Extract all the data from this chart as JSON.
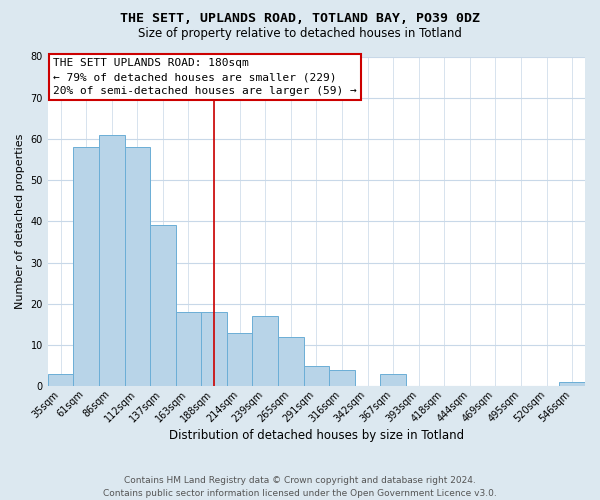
{
  "title1": "THE SETT, UPLANDS ROAD, TOTLAND BAY, PO39 0DZ",
  "title2": "Size of property relative to detached houses in Totland",
  "xlabel": "Distribution of detached houses by size in Totland",
  "ylabel": "Number of detached properties",
  "bar_labels": [
    "35sqm",
    "61sqm",
    "86sqm",
    "112sqm",
    "137sqm",
    "163sqm",
    "188sqm",
    "214sqm",
    "239sqm",
    "265sqm",
    "291sqm",
    "316sqm",
    "342sqm",
    "367sqm",
    "393sqm",
    "418sqm",
    "444sqm",
    "469sqm",
    "495sqm",
    "520sqm",
    "546sqm"
  ],
  "bar_values": [
    3,
    58,
    61,
    58,
    39,
    18,
    18,
    13,
    17,
    12,
    5,
    4,
    0,
    3,
    0,
    0,
    0,
    0,
    0,
    0,
    1
  ],
  "bar_color": "#b8d4e8",
  "bar_edge_color": "#6baed6",
  "vline_index": 6,
  "vline_color": "#cc0000",
  "ylim": [
    0,
    80
  ],
  "yticks": [
    0,
    10,
    20,
    30,
    40,
    50,
    60,
    70,
    80
  ],
  "annotation_line1": "THE SETT UPLANDS ROAD: 180sqm",
  "annotation_line2": "← 79% of detached houses are smaller (229)",
  "annotation_line3": "20% of semi-detached houses are larger (59) →",
  "footer1": "Contains HM Land Registry data © Crown copyright and database right 2024.",
  "footer2": "Contains public sector information licensed under the Open Government Licence v3.0.",
  "bg_color": "#dce8f0",
  "plot_bg_color": "#ffffff",
  "grid_color": "#c8d8e8",
  "title_fontsize": 9.5,
  "subtitle_fontsize": 8.5,
  "xlabel_fontsize": 8.5,
  "ylabel_fontsize": 8,
  "tick_fontsize": 7,
  "ann_fontsize": 8,
  "footer_fontsize": 6.5
}
